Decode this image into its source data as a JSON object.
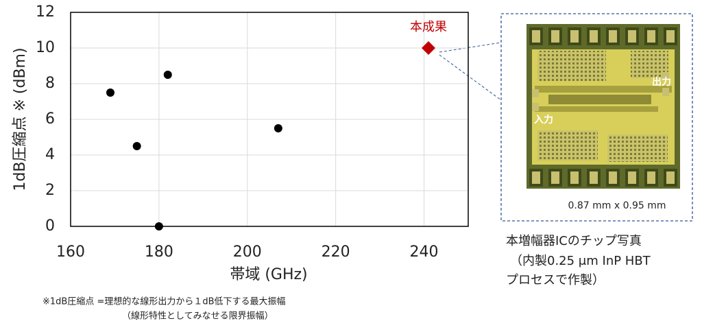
{
  "chart_data": {
    "type": "scatter",
    "xlabel": "帯域 (GHz)",
    "ylabel": "1dB圧縮点 ※ (dBm)",
    "xlim": [
      160,
      250
    ],
    "xticks": [
      160,
      180,
      200,
      220,
      240
    ],
    "ylim": [
      0,
      12
    ],
    "yticks": [
      0,
      2,
      4,
      6,
      8,
      10,
      12
    ],
    "grid": true,
    "points": {
      "color": "#000000",
      "x": [
        169,
        175,
        180,
        182,
        207
      ],
      "y": [
        7.5,
        4.5,
        0,
        8.5,
        5.5
      ]
    },
    "highlight": {
      "label": "本成果",
      "color": "#c00000",
      "x": 241,
      "y": 10
    },
    "footnote": [
      "※1dB圧縮点 =理想的な線形出力から１dB低下する最大振幅",
      "（線形特性としてみなせる限界振幅）"
    ]
  },
  "inset": {
    "output_label": "出力",
    "input_label": "入力",
    "dimensions": "0.87 mm x 0.95 mm",
    "caption": [
      "本増幅器ICのチップ写真",
      "（内製0.25 μm InP HBT",
      "プロセスで作製）"
    ]
  }
}
